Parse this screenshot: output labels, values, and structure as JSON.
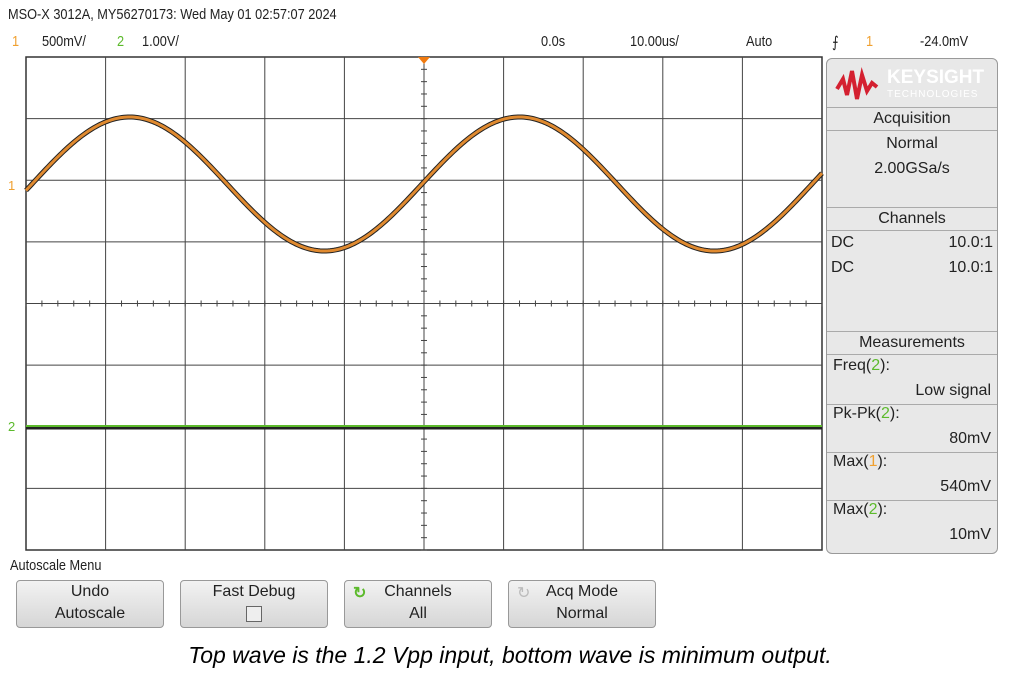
{
  "header": {
    "title": "MSO-X 3012A, MY56270173: Wed May 01 02:57:07 2024",
    "ch1_num": "1",
    "ch1_scale": "500mV/",
    "ch2_num": "2",
    "ch2_scale": "1.00V/",
    "time_offset": "0.0s",
    "time_scale": "10.00us/",
    "trigger_mode": "Auto",
    "trigger_source": "1",
    "trigger_level": "-24.0mV"
  },
  "colors": {
    "ch1": "#f0a030",
    "ch2": "#5cba2c"
  },
  "logo": {
    "name": "KEYSIGHT",
    "sub": "TECHNOLOGIES"
  },
  "acquisition": {
    "title": "Acquisition",
    "mode": "Normal",
    "rate": "2.00GSa/s"
  },
  "channels": {
    "title": "Channels",
    "rows": [
      {
        "coupling": "DC",
        "probe": "10.0:1"
      },
      {
        "coupling": "DC",
        "probe": "10.0:1"
      }
    ]
  },
  "measurements": {
    "title": "Measurements",
    "items": [
      {
        "label": "Freq",
        "ch": "2",
        "value": "Low signal"
      },
      {
        "label": "Pk-Pk",
        "ch": "2",
        "value": "80mV"
      },
      {
        "label": "Max",
        "ch": "1",
        "value": "540mV"
      },
      {
        "label": "Max",
        "ch": "2",
        "value": "10mV"
      }
    ]
  },
  "menu": {
    "title": "Autoscale Menu",
    "buttons": [
      {
        "line1": "Undo",
        "line2": "Autoscale"
      },
      {
        "line1": "Fast Debug",
        "line2": ""
      },
      {
        "line1": "Channels",
        "line2": "All"
      },
      {
        "line1": "Acq Mode",
        "line2": "Normal"
      }
    ]
  },
  "caption": "Top wave is the 1.2 Vpp input, bottom wave is minimum output.",
  "markers": {
    "ch1": "1",
    "ch2": "2"
  }
}
